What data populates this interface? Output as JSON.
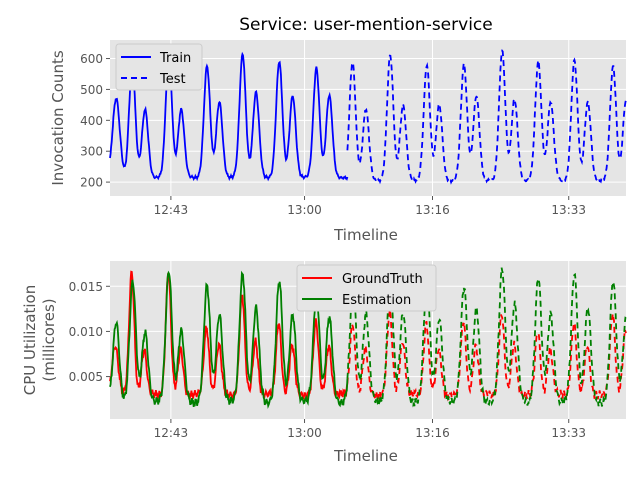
{
  "title": "Service: user-mention-service",
  "chart_data": [
    {
      "type": "line",
      "title": "Service: user-mention-service",
      "xlabel": "Timeline",
      "ylabel": "Invocation Counts",
      "xticks": [
        "12:43",
        "13:00",
        "13:16",
        "13:33"
      ],
      "yticks": [
        200,
        300,
        400,
        500,
        600
      ],
      "ylim": [
        155,
        660
      ],
      "grid": true,
      "legend_position": "upper-left",
      "series": [
        {
          "name": "Train",
          "color": "#0000ff",
          "linestyle": "solid",
          "peaks": [
            {
              "t": 0.012,
              "v": 470,
              "w": 0.007
            },
            {
              "t": 0.043,
              "v": 580,
              "w": 0.006
            },
            {
              "t": 0.068,
              "v": 435,
              "w": 0.006
            },
            {
              "t": 0.114,
              "v": 615,
              "w": 0.006
            },
            {
              "t": 0.138,
              "v": 435,
              "w": 0.006
            },
            {
              "t": 0.188,
              "v": 575,
              "w": 0.006
            },
            {
              "t": 0.212,
              "v": 460,
              "w": 0.006
            },
            {
              "t": 0.257,
              "v": 615,
              "w": 0.006
            },
            {
              "t": 0.283,
              "v": 490,
              "w": 0.006
            },
            {
              "t": 0.328,
              "v": 590,
              "w": 0.006
            },
            {
              "t": 0.354,
              "v": 480,
              "w": 0.006
            },
            {
              "t": 0.4,
              "v": 570,
              "w": 0.006
            },
            {
              "t": 0.425,
              "v": 480,
              "w": 0.006
            }
          ],
          "baseline": 215,
          "t_range": [
            0.0,
            0.46
          ]
        },
        {
          "name": "Test",
          "color": "#0000ff",
          "linestyle": "dashed",
          "peaks": [
            {
              "t": 0.47,
              "v": 590,
              "w": 0.006
            },
            {
              "t": 0.496,
              "v": 435,
              "w": 0.006
            },
            {
              "t": 0.543,
              "v": 610,
              "w": 0.006
            },
            {
              "t": 0.568,
              "v": 450,
              "w": 0.006
            },
            {
              "t": 0.614,
              "v": 580,
              "w": 0.006
            },
            {
              "t": 0.638,
              "v": 450,
              "w": 0.006
            },
            {
              "t": 0.686,
              "v": 580,
              "w": 0.006
            },
            {
              "t": 0.71,
              "v": 480,
              "w": 0.006
            },
            {
              "t": 0.76,
              "v": 625,
              "w": 0.006
            },
            {
              "t": 0.784,
              "v": 470,
              "w": 0.006
            },
            {
              "t": 0.83,
              "v": 590,
              "w": 0.006
            },
            {
              "t": 0.854,
              "v": 460,
              "w": 0.006
            },
            {
              "t": 0.9,
              "v": 595,
              "w": 0.006
            },
            {
              "t": 0.926,
              "v": 460,
              "w": 0.006
            },
            {
              "t": 0.975,
              "v": 575,
              "w": 0.006
            },
            {
              "t": 1.0,
              "v": 465,
              "w": 0.006
            }
          ],
          "baseline": 205,
          "t_range": [
            0.46,
            1.0
          ]
        }
      ]
    },
    {
      "type": "line",
      "title": "",
      "xlabel": "Timeline",
      "ylabel": "CPU Utilization\n(millicores)",
      "xticks": [
        "12:43",
        "13:00",
        "13:16",
        "13:33"
      ],
      "yticks": [
        "0.005",
        "0.010",
        "0.015"
      ],
      "ylim": [
        0.0003,
        0.0178
      ],
      "grid": true,
      "legend_position": "upper-center",
      "split_t": 0.46,
      "series": [
        {
          "name": "GroundTruth",
          "color": "#ff0000",
          "peaks": [
            {
              "t": 0.01,
              "v": 0.0085,
              "w": 0.006
            },
            {
              "t": 0.042,
              "v": 0.0165,
              "w": 0.005
            },
            {
              "t": 0.066,
              "v": 0.008,
              "w": 0.005
            },
            {
              "t": 0.113,
              "v": 0.0165,
              "w": 0.005
            },
            {
              "t": 0.137,
              "v": 0.008,
              "w": 0.005
            },
            {
              "t": 0.187,
              "v": 0.0105,
              "w": 0.005
            },
            {
              "t": 0.211,
              "v": 0.0085,
              "w": 0.005
            },
            {
              "t": 0.256,
              "v": 0.014,
              "w": 0.005
            },
            {
              "t": 0.282,
              "v": 0.009,
              "w": 0.005
            },
            {
              "t": 0.327,
              "v": 0.011,
              "w": 0.005
            },
            {
              "t": 0.353,
              "v": 0.0085,
              "w": 0.005
            },
            {
              "t": 0.399,
              "v": 0.011,
              "w": 0.005
            },
            {
              "t": 0.424,
              "v": 0.0085,
              "w": 0.005
            },
            {
              "t": 0.47,
              "v": 0.011,
              "w": 0.005
            },
            {
              "t": 0.495,
              "v": 0.008,
              "w": 0.005
            },
            {
              "t": 0.542,
              "v": 0.012,
              "w": 0.005
            },
            {
              "t": 0.567,
              "v": 0.009,
              "w": 0.005
            },
            {
              "t": 0.613,
              "v": 0.011,
              "w": 0.005
            },
            {
              "t": 0.637,
              "v": 0.008,
              "w": 0.005
            },
            {
              "t": 0.685,
              "v": 0.011,
              "w": 0.005
            },
            {
              "t": 0.709,
              "v": 0.0085,
              "w": 0.005
            },
            {
              "t": 0.759,
              "v": 0.012,
              "w": 0.005
            },
            {
              "t": 0.783,
              "v": 0.0085,
              "w": 0.005
            },
            {
              "t": 0.829,
              "v": 0.01,
              "w": 0.005
            },
            {
              "t": 0.853,
              "v": 0.008,
              "w": 0.005
            },
            {
              "t": 0.899,
              "v": 0.011,
              "w": 0.005
            },
            {
              "t": 0.925,
              "v": 0.0085,
              "w": 0.005
            },
            {
              "t": 0.974,
              "v": 0.012,
              "w": 0.005
            },
            {
              "t": 0.999,
              "v": 0.01,
              "w": 0.005
            }
          ],
          "baseline": 0.003
        },
        {
          "name": "Estimation",
          "color": "#008000",
          "peaks": [
            {
              "t": 0.012,
              "v": 0.011,
              "w": 0.006
            },
            {
              "t": 0.044,
              "v": 0.0155,
              "w": 0.006
            },
            {
              "t": 0.068,
              "v": 0.01,
              "w": 0.006
            },
            {
              "t": 0.114,
              "v": 0.0168,
              "w": 0.006
            },
            {
              "t": 0.138,
              "v": 0.01,
              "w": 0.006
            },
            {
              "t": 0.188,
              "v": 0.015,
              "w": 0.006
            },
            {
              "t": 0.212,
              "v": 0.012,
              "w": 0.006
            },
            {
              "t": 0.257,
              "v": 0.0165,
              "w": 0.006
            },
            {
              "t": 0.283,
              "v": 0.0125,
              "w": 0.006
            },
            {
              "t": 0.328,
              "v": 0.0155,
              "w": 0.006
            },
            {
              "t": 0.354,
              "v": 0.012,
              "w": 0.006
            },
            {
              "t": 0.4,
              "v": 0.0145,
              "w": 0.006
            },
            {
              "t": 0.425,
              "v": 0.0115,
              "w": 0.006
            },
            {
              "t": 0.471,
              "v": 0.015,
              "w": 0.006
            },
            {
              "t": 0.496,
              "v": 0.012,
              "w": 0.006
            },
            {
              "t": 0.543,
              "v": 0.0155,
              "w": 0.006
            },
            {
              "t": 0.568,
              "v": 0.012,
              "w": 0.006
            },
            {
              "t": 0.614,
              "v": 0.0155,
              "w": 0.006
            },
            {
              "t": 0.638,
              "v": 0.0115,
              "w": 0.006
            },
            {
              "t": 0.686,
              "v": 0.015,
              "w": 0.006
            },
            {
              "t": 0.71,
              "v": 0.0125,
              "w": 0.006
            },
            {
              "t": 0.76,
              "v": 0.017,
              "w": 0.006
            },
            {
              "t": 0.784,
              "v": 0.013,
              "w": 0.006
            },
            {
              "t": 0.83,
              "v": 0.016,
              "w": 0.006
            },
            {
              "t": 0.854,
              "v": 0.012,
              "w": 0.006
            },
            {
              "t": 0.9,
              "v": 0.0165,
              "w": 0.006
            },
            {
              "t": 0.926,
              "v": 0.0125,
              "w": 0.006
            },
            {
              "t": 0.975,
              "v": 0.0155,
              "w": 0.006
            },
            {
              "t": 1.0,
              "v": 0.0115,
              "w": 0.006
            }
          ],
          "baseline": 0.0022
        }
      ]
    }
  ]
}
